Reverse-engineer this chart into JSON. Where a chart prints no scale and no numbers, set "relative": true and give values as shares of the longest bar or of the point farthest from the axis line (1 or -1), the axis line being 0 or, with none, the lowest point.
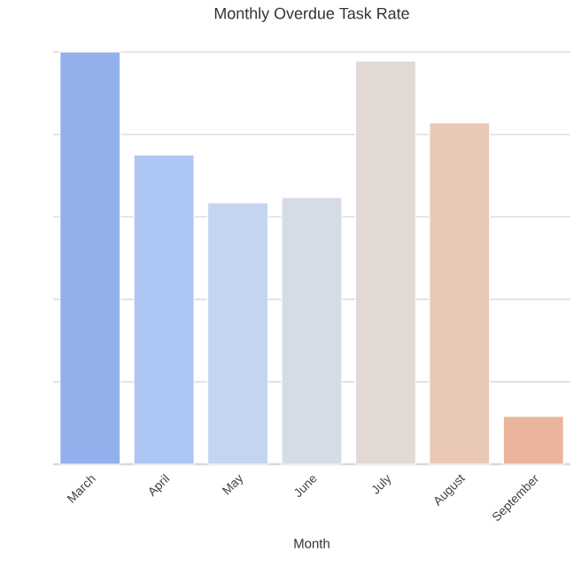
{
  "chart_data": {
    "type": "bar",
    "title": "Monthly Overdue Task Rate",
    "xlabel": "Month",
    "categories": [
      "March",
      "April",
      "May",
      "June",
      "July",
      "August",
      "September"
    ],
    "values": [
      1,
      0.75,
      0.634,
      0.647,
      0.978,
      0.828,
      0.116
    ],
    "colors": [
      "#94b0ec",
      "#adc5f3",
      "#c5d4f0",
      "#d5dce6",
      "#e3d9d4",
      "#eac8b8",
      "#ebb49c"
    ],
    "relative": true,
    "grid": "y"
  }
}
